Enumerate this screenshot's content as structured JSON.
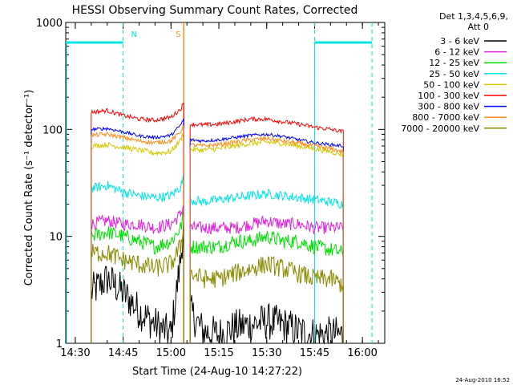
{
  "chart_data": {
    "type": "line",
    "title": "HESSI Observing Summary Count Rates, Corrected",
    "xlabel": "Start Time (24-Aug-10 14:27:22)",
    "ylabel": "Corrected Count Rate (s⁻¹ detector⁻¹)",
    "y_scale": "log",
    "ylim": [
      1,
      1000
    ],
    "xlim": [
      "14:27",
      "16:07"
    ],
    "x_ticks": [
      "14:30",
      "14:45",
      "15:00",
      "15:15",
      "15:30",
      "15:45",
      "16:00"
    ],
    "y_ticks": [
      "1",
      "10",
      "100",
      "1000"
    ],
    "legend_header": [
      "Det 1,3,4,5,6,9,",
      "Att 0"
    ],
    "legend_position": "right",
    "timestamp": "24-Aug-2010 16:52",
    "markers": [
      {
        "label": "N",
        "time": "14:45",
        "color": "#00e5e5"
      },
      {
        "label": "S",
        "time": "15:04",
        "color": "#ff8c1a"
      }
    ],
    "night_bars": [
      {
        "start": "14:27",
        "end": "14:45",
        "level": 650
      },
      {
        "start": "15:45",
        "end": "16:03",
        "level": 650
      }
    ],
    "night_lines": [
      "14:45",
      "15:45",
      "16:03"
    ],
    "saa_line": "15:04",
    "gap": {
      "start": "15:04",
      "end": "15:06"
    },
    "x": [
      "14:35",
      "14:40",
      "14:45",
      "14:50",
      "14:55",
      "15:00",
      "15:03",
      "15:04",
      "15:06",
      "15:10",
      "15:15",
      "15:20",
      "15:25",
      "15:30",
      "15:35",
      "15:40",
      "15:45",
      "15:50",
      "15:54"
    ],
    "series": [
      {
        "name": "3 - 6 keV",
        "color": "#000000",
        "values": [
          3,
          4,
          3,
          2,
          1.5,
          1.2,
          6,
          14,
          2,
          1.3,
          1.2,
          1.4,
          1.5,
          1.6,
          1.5,
          1.3,
          1.2,
          1.2,
          1.2
        ]
      },
      {
        "name": "6 - 12 keV",
        "color": "#e020e0",
        "values": [
          13,
          14,
          13,
          13,
          12,
          13,
          16,
          20,
          12,
          12,
          12,
          12,
          13,
          14,
          13,
          13,
          12,
          12,
          12
        ]
      },
      {
        "name": "12 - 25 keV",
        "color": "#00e000",
        "values": [
          10,
          11,
          10,
          9,
          8,
          9,
          12,
          16,
          8,
          8,
          8,
          9,
          9,
          10,
          9,
          9,
          8,
          7.5,
          7
        ]
      },
      {
        "name": "25 - 50 keV",
        "color": "#00e5e5",
        "values": [
          28,
          30,
          26,
          24,
          23,
          24,
          29,
          36,
          22,
          21,
          22,
          23,
          24,
          25,
          24,
          23,
          22,
          21,
          20
        ]
      },
      {
        "name": "50 - 100 keV",
        "color": "#d4c800",
        "values": [
          70,
          72,
          68,
          64,
          60,
          62,
          80,
          95,
          65,
          64,
          66,
          70,
          74,
          76,
          74,
          70,
          66,
          62,
          58
        ]
      },
      {
        "name": "100 - 300 keV",
        "color": "#ff0000",
        "values": [
          145,
          150,
          135,
          125,
          122,
          130,
          155,
          175,
          112,
          110,
          112,
          118,
          125,
          125,
          118,
          112,
          105,
          100,
          95
        ]
      },
      {
        "name": "300 - 800 keV",
        "color": "#0000ff",
        "values": [
          100,
          102,
          95,
          87,
          84,
          88,
          110,
          125,
          80,
          78,
          80,
          84,
          88,
          90,
          86,
          80,
          75,
          72,
          70
        ]
      },
      {
        "name": "800 - 7000 keV",
        "color": "#ff8c1a",
        "values": [
          88,
          90,
          84,
          78,
          75,
          78,
          95,
          110,
          72,
          70,
          72,
          76,
          80,
          82,
          78,
          74,
          70,
          66,
          62
        ]
      },
      {
        "name": "7000 - 20000 keV",
        "color": "#8a8a00",
        "values": [
          7,
          7,
          6,
          5.5,
          5,
          5.5,
          8,
          12,
          4.5,
          4,
          4,
          4.5,
          5,
          5.5,
          5,
          4.5,
          4,
          4,
          3.5
        ]
      }
    ]
  }
}
